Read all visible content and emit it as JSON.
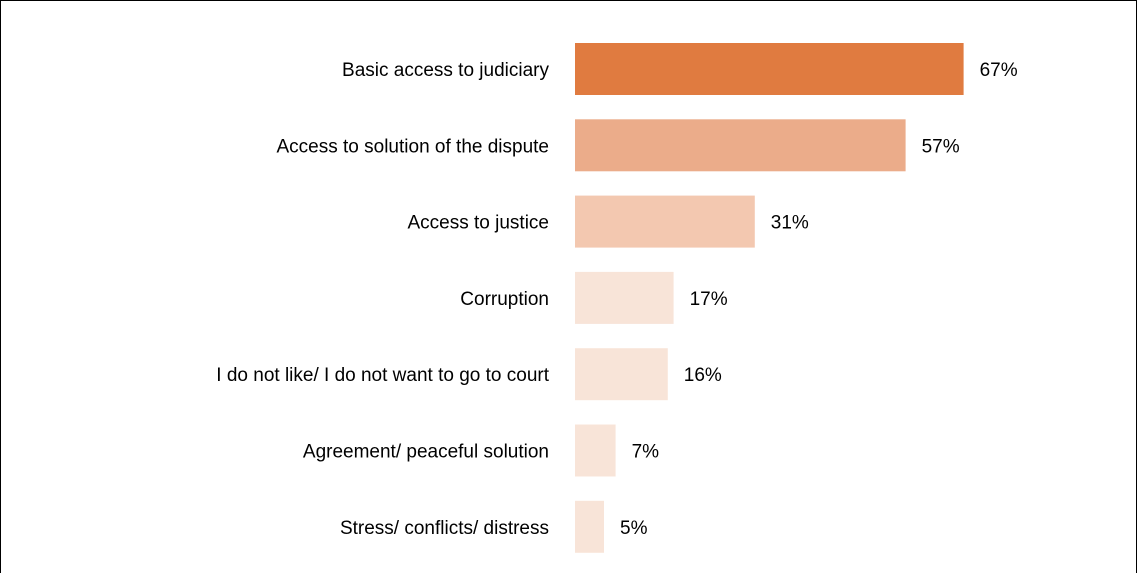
{
  "chart_data": {
    "type": "bar",
    "orientation": "horizontal",
    "title": "",
    "xlabel": "",
    "ylabel": "",
    "categories": [
      "Basic access to judiciary",
      "Access to solution of the dispute",
      "Access to justice",
      "Corruption",
      "I do not like/ I do not want to go to court",
      "Agreement/ peaceful solution",
      "Stress/ conflicts/ distress"
    ],
    "values": [
      67,
      57,
      31,
      17,
      16,
      7,
      5
    ],
    "value_labels": [
      "67%",
      "57%",
      "31%",
      "17%",
      "16%",
      "7%",
      "5%"
    ],
    "bar_colors": [
      "#e07b40",
      "#ebac8a",
      "#f3c8b0",
      "#f8e4d8",
      "#f8e4d8",
      "#f8e4d8",
      "#f8e4d8"
    ],
    "xlim": [
      0,
      100
    ],
    "grid": false,
    "legend": "none"
  }
}
